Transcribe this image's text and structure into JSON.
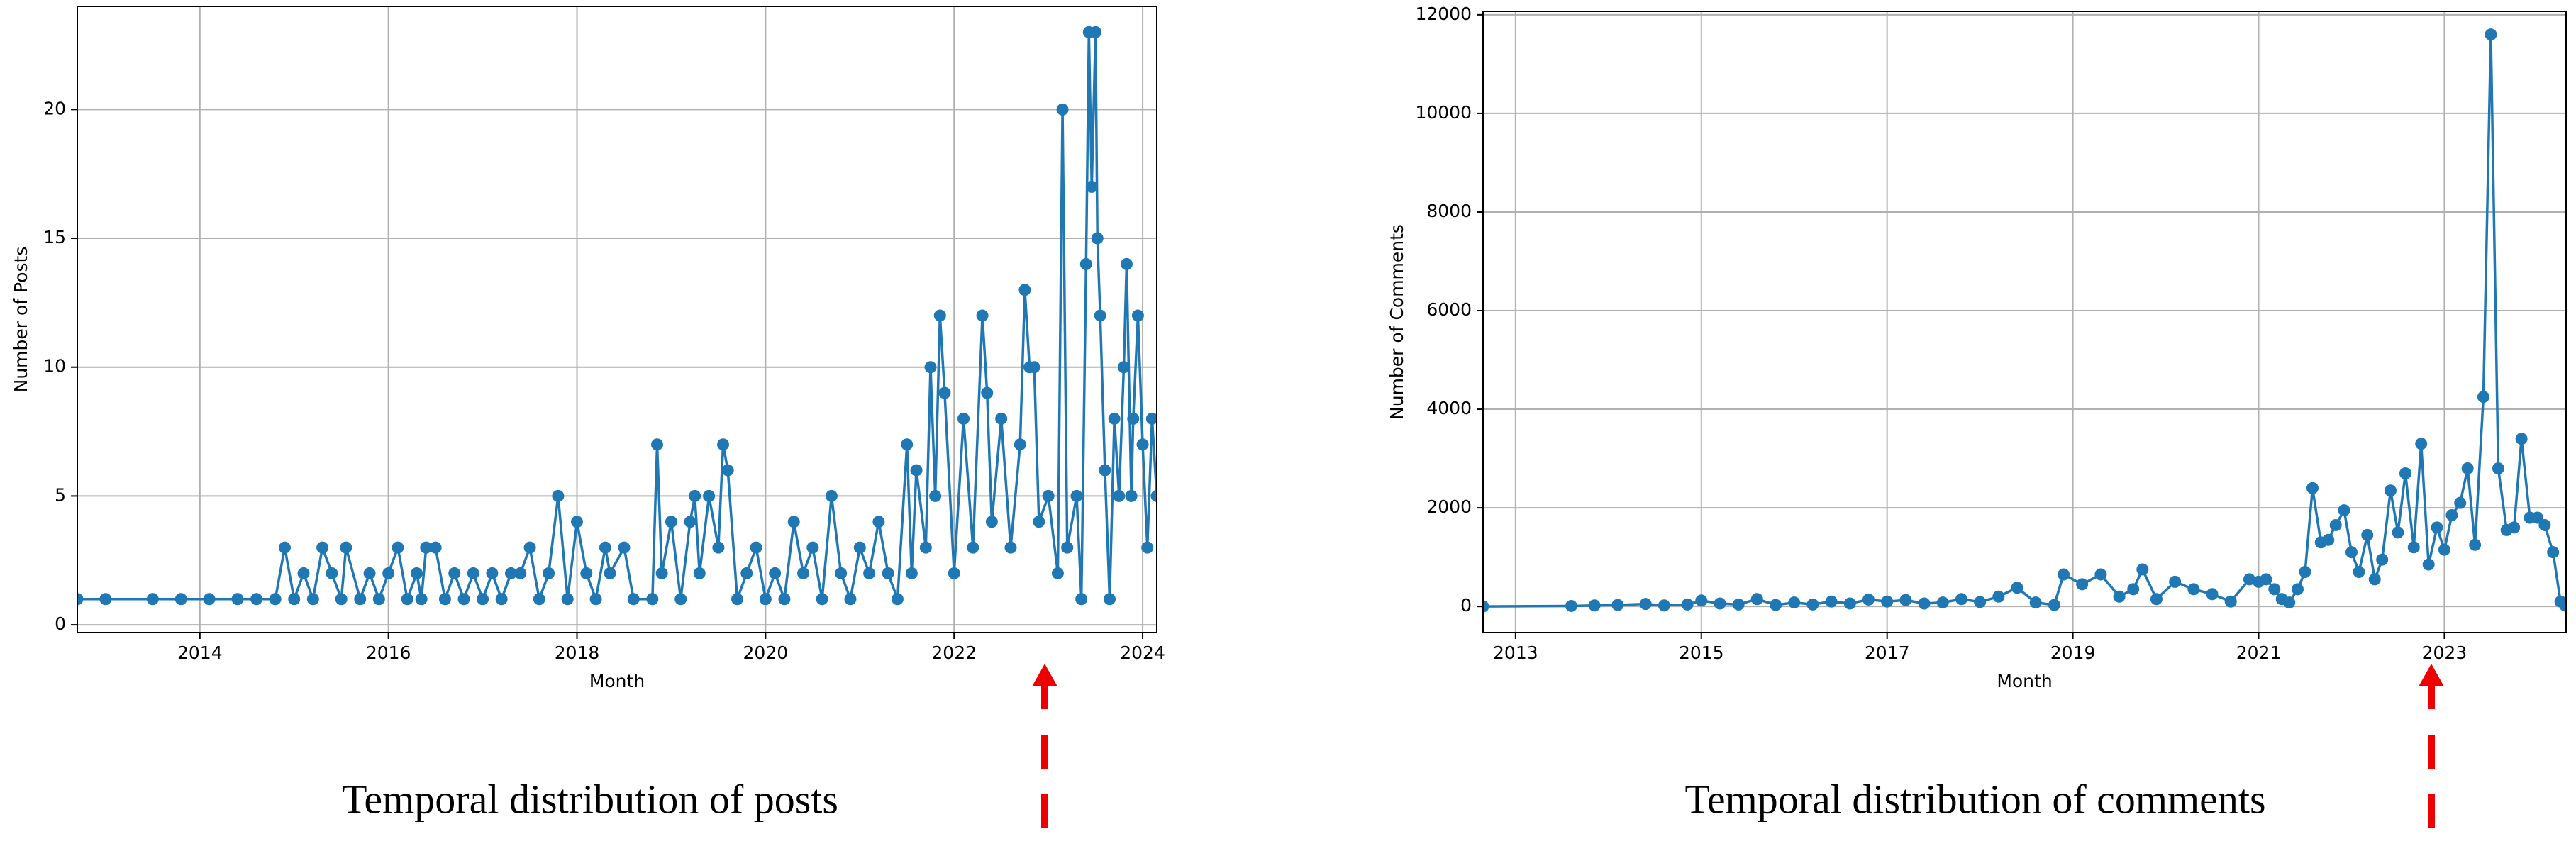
{
  "chart_data": [
    {
      "type": "line",
      "caption": "Temporal distribution of posts",
      "xlabel": "Month",
      "ylabel": "Number of Posts",
      "color": "#1f77b4",
      "grid": true,
      "xlim": [
        2012.7,
        2024.15
      ],
      "ylim": [
        -0.3,
        24
      ],
      "xticks": [
        2014,
        2016,
        2018,
        2020,
        2022,
        2024
      ],
      "yticks": [
        0,
        5,
        10,
        15,
        20
      ],
      "x": [
        2012.7,
        2013.0,
        2013.5,
        2013.8,
        2014.1,
        2014.4,
        2014.6,
        2014.8,
        2014.9,
        2015.0,
        2015.1,
        2015.2,
        2015.3,
        2015.4,
        2015.5,
        2015.55,
        2015.7,
        2015.8,
        2015.9,
        2016.0,
        2016.1,
        2016.2,
        2016.3,
        2016.35,
        2016.4,
        2016.5,
        2016.6,
        2016.7,
        2016.8,
        2016.9,
        2017.0,
        2017.1,
        2017.2,
        2017.3,
        2017.4,
        2017.5,
        2017.6,
        2017.7,
        2017.8,
        2017.9,
        2018.0,
        2018.1,
        2018.2,
        2018.3,
        2018.35,
        2018.5,
        2018.6,
        2018.8,
        2018.85,
        2018.9,
        2019.0,
        2019.1,
        2019.2,
        2019.25,
        2019.3,
        2019.4,
        2019.5,
        2019.55,
        2019.6,
        2019.7,
        2019.8,
        2019.9,
        2020.0,
        2020.1,
        2020.2,
        2020.3,
        2020.4,
        2020.5,
        2020.6,
        2020.7,
        2020.8,
        2020.9,
        2021.0,
        2021.1,
        2021.2,
        2021.3,
        2021.4,
        2021.5,
        2021.55,
        2021.6,
        2021.7,
        2021.75,
        2021.8,
        2021.85,
        2021.9,
        2022.0,
        2022.1,
        2022.2,
        2022.3,
        2022.35,
        2022.4,
        2022.5,
        2022.6,
        2022.7,
        2022.75,
        2022.8,
        2022.85,
        2022.9,
        2023.0,
        2023.1,
        2023.15,
        2023.2,
        2023.3,
        2023.35,
        2023.4,
        2023.43,
        2023.46,
        2023.5,
        2023.52,
        2023.55,
        2023.6,
        2023.65,
        2023.7,
        2023.75,
        2023.8,
        2023.83,
        2023.88,
        2023.9,
        2023.95,
        2024.0,
        2024.05,
        2024.1,
        2024.15
      ],
      "values": [
        1,
        1,
        1,
        1,
        1,
        1,
        1,
        1,
        3,
        1,
        2,
        1,
        3,
        2,
        1,
        3,
        1,
        2,
        1,
        2,
        3,
        1,
        2,
        1,
        3,
        3,
        1,
        2,
        1,
        2,
        1,
        2,
        1,
        2,
        2,
        3,
        1,
        2,
        5,
        1,
        4,
        2,
        1,
        3,
        2,
        3,
        1,
        1,
        7,
        2,
        4,
        1,
        4,
        5,
        2,
        5,
        3,
        7,
        6,
        1,
        2,
        3,
        1,
        2,
        1,
        4,
        2,
        3,
        1,
        5,
        2,
        1,
        3,
        2,
        4,
        2,
        1,
        7,
        2,
        6,
        3,
        10,
        5,
        12,
        9,
        2,
        8,
        3,
        12,
        9,
        4,
        8,
        3,
        7,
        13,
        10,
        10,
        4,
        5,
        2,
        20,
        3,
        5,
        1,
        14,
        23,
        17,
        23,
        15,
        12,
        6,
        1,
        8,
        5,
        10,
        14,
        5,
        8,
        12,
        7,
        3,
        8,
        5
      ]
    },
    {
      "type": "line",
      "caption": "Temporal distribution of comments",
      "xlabel": "Month",
      "ylabel": "Number of Comments",
      "color": "#1f77b4",
      "grid": true,
      "xlim": [
        2012.65,
        2024.31
      ],
      "ylim": [
        -530,
        12070
      ],
      "xticks": [
        2013,
        2015,
        2017,
        2019,
        2021,
        2023
      ],
      "yticks": [
        0,
        2000,
        4000,
        6000,
        8000,
        10000,
        12000
      ],
      "x": [
        2012.65,
        2013.6,
        2013.85,
        2014.1,
        2014.4,
        2014.6,
        2014.85,
        2015.0,
        2015.2,
        2015.4,
        2015.6,
        2015.8,
        2016.0,
        2016.2,
        2016.4,
        2016.6,
        2016.8,
        2017.0,
        2017.2,
        2017.4,
        2017.6,
        2017.8,
        2018.0,
        2018.2,
        2018.4,
        2018.6,
        2018.8,
        2018.9,
        2019.1,
        2019.3,
        2019.5,
        2019.65,
        2019.75,
        2019.9,
        2020.1,
        2020.3,
        2020.5,
        2020.7,
        2020.9,
        2021.0,
        2021.08,
        2021.17,
        2021.25,
        2021.33,
        2021.42,
        2021.5,
        2021.58,
        2021.67,
        2021.75,
        2021.83,
        2021.92,
        2022.0,
        2022.08,
        2022.17,
        2022.25,
        2022.33,
        2022.42,
        2022.5,
        2022.58,
        2022.67,
        2022.75,
        2022.83,
        2022.92,
        2023.0,
        2023.08,
        2023.17,
        2023.25,
        2023.33,
        2023.42,
        2023.5,
        2023.58,
        2023.67,
        2023.75,
        2023.83,
        2023.92,
        2024.0,
        2024.08,
        2024.17,
        2024.25,
        2024.3
      ],
      "values": [
        0,
        10,
        20,
        30,
        50,
        20,
        40,
        120,
        60,
        40,
        150,
        30,
        80,
        40,
        100,
        60,
        140,
        100,
        130,
        60,
        80,
        150,
        90,
        200,
        380,
        80,
        30,
        650,
        450,
        650,
        200,
        350,
        750,
        150,
        500,
        350,
        250,
        100,
        550,
        500,
        550,
        350,
        150,
        80,
        350,
        700,
        2400,
        1300,
        1350,
        1650,
        1950,
        1100,
        700,
        1450,
        550,
        950,
        2350,
        1500,
        2700,
        1200,
        3300,
        850,
        1600,
        1150,
        1850,
        2100,
        2800,
        1250,
        4250,
        11600,
        2800,
        1550,
        1600,
        3400,
        1800,
        1800,
        1650,
        1100,
        100,
        20
      ]
    }
  ]
}
